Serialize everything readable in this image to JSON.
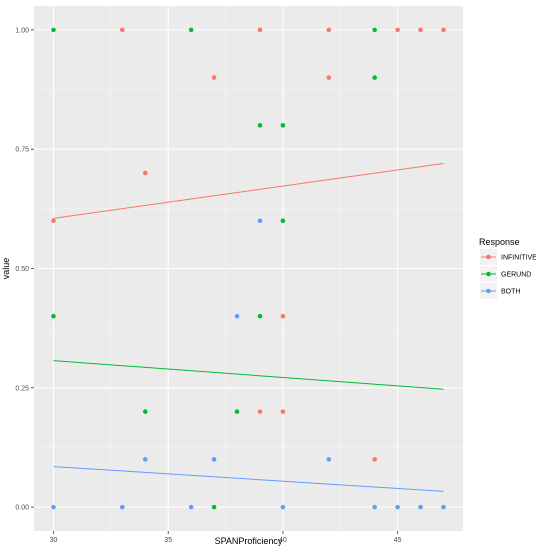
{
  "chart_data": {
    "type": "scatter",
    "xlabel": "SPANProficiency",
    "ylabel": "value",
    "xlim": [
      29.15,
      47.85
    ],
    "ylim": [
      -0.05,
      1.05
    ],
    "xticks": [
      30,
      35,
      40,
      45
    ],
    "xtick_labels": [
      "30",
      "35",
      "40",
      "45"
    ],
    "yticks": [
      0,
      0.25,
      0.5,
      0.75,
      1
    ],
    "ytick_labels": [
      "0.00",
      "0.25",
      "0.50",
      "0.75",
      "1.00"
    ],
    "grid": true,
    "legend": {
      "title": "Response",
      "position": "right"
    },
    "series": [
      {
        "name": "INFINITIVE",
        "color": "#F8766D",
        "points": [
          [
            30,
            0.6
          ],
          [
            33,
            1.0
          ],
          [
            34,
            0.7
          ],
          [
            37,
            0.9
          ],
          [
            39,
            1.0
          ],
          [
            39,
            0.2
          ],
          [
            40,
            0.4
          ],
          [
            40,
            0.2
          ],
          [
            42,
            1.0
          ],
          [
            42,
            0.9
          ],
          [
            44,
            0.1
          ],
          [
            45,
            1.0
          ],
          [
            46,
            1.0
          ],
          [
            47,
            1.0
          ]
        ],
        "trend": [
          [
            30,
            0.605
          ],
          [
            47,
            0.72
          ]
        ]
      },
      {
        "name": "GERUND",
        "color": "#00BA38",
        "points": [
          [
            30,
            1.0
          ],
          [
            30,
            0.4
          ],
          [
            34,
            0.2
          ],
          [
            36,
            1.0
          ],
          [
            37,
            0.0
          ],
          [
            38,
            0.2
          ],
          [
            39,
            0.8
          ],
          [
            39,
            0.4
          ],
          [
            40,
            0.8
          ],
          [
            40,
            0.6
          ],
          [
            44,
            1.0
          ],
          [
            44,
            0.9
          ]
        ],
        "trend": [
          [
            30,
            0.307
          ],
          [
            47,
            0.247
          ]
        ]
      },
      {
        "name": "BOTH",
        "color": "#619CFF",
        "points": [
          [
            30,
            0.0
          ],
          [
            33,
            0.0
          ],
          [
            34,
            0.1
          ],
          [
            36,
            0.0
          ],
          [
            37,
            0.1
          ],
          [
            38,
            0.4
          ],
          [
            39,
            0.6
          ],
          [
            40,
            0.0
          ],
          [
            42,
            0.1
          ],
          [
            44,
            0.0
          ],
          [
            45,
            0.0
          ],
          [
            46,
            0.0
          ],
          [
            47,
            0.0
          ]
        ],
        "trend": [
          [
            30,
            0.085
          ],
          [
            47,
            0.033
          ]
        ]
      }
    ]
  }
}
